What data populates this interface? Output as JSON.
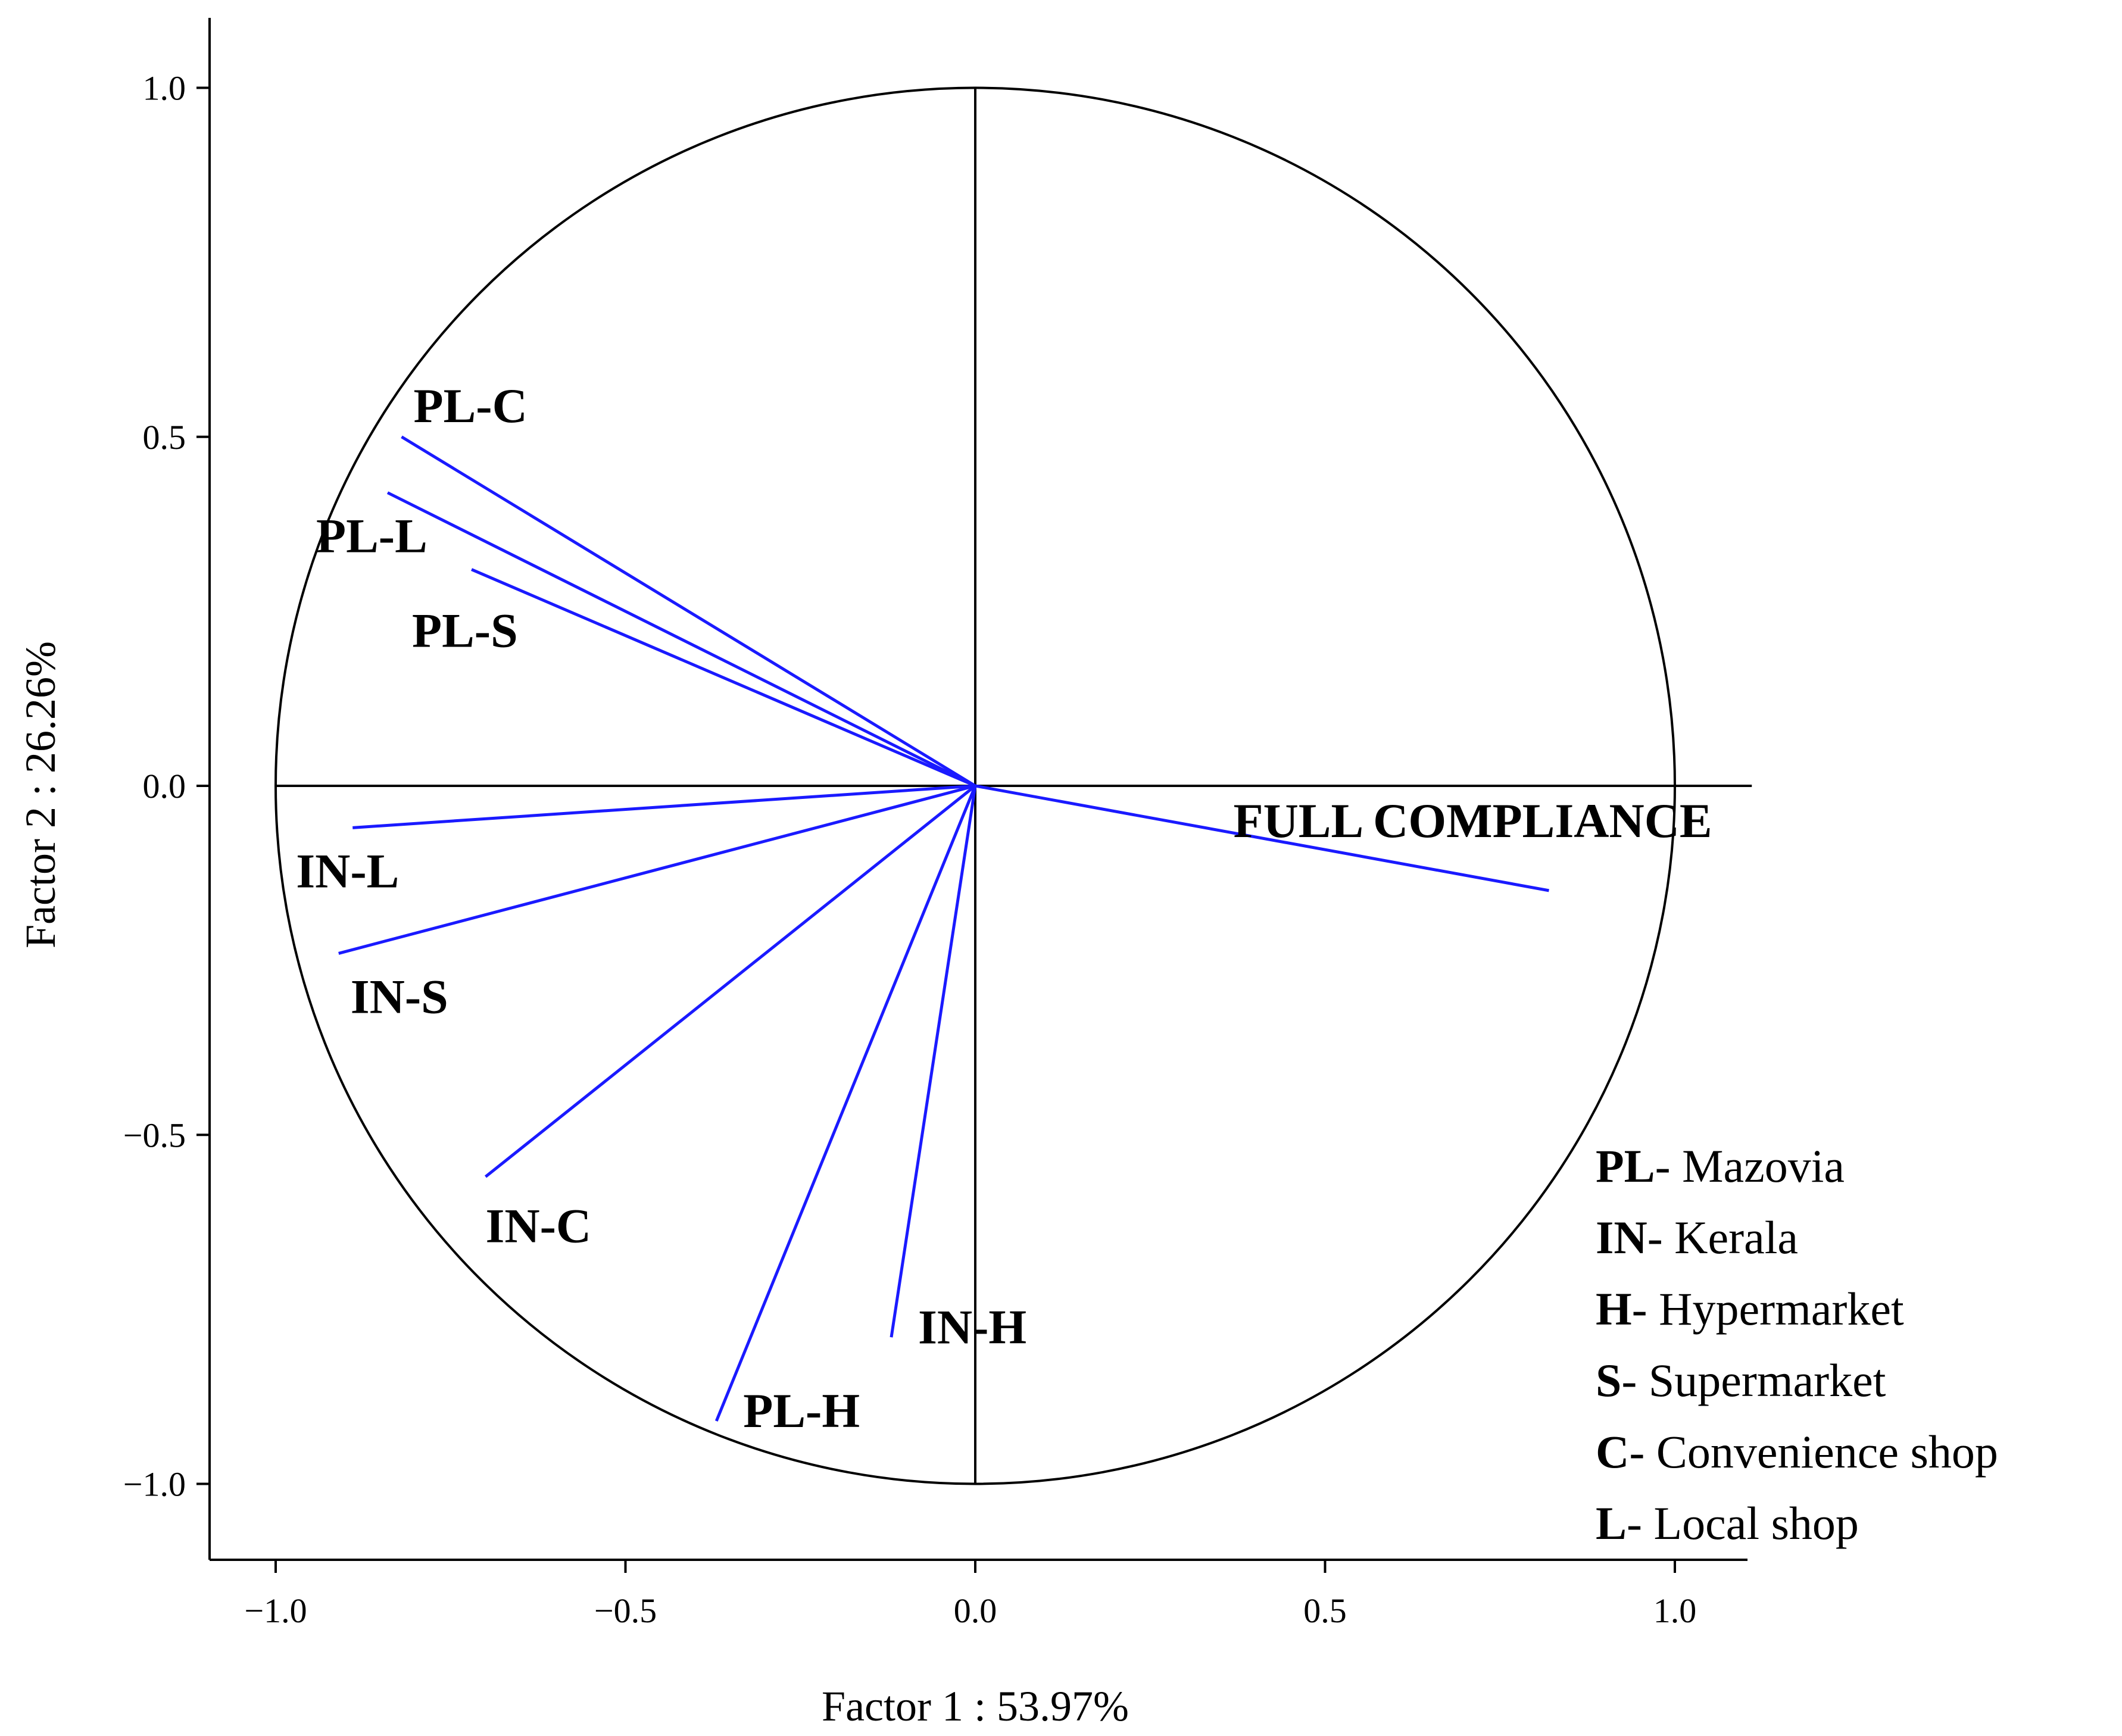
{
  "chart_data": {
    "type": "scatter",
    "subtype": "pca-correlation-circle",
    "xlabel": "Factor 1 : 53.97%",
    "ylabel": "Factor 2 : 26.26%",
    "xlim": [
      -1.1,
      1.1
    ],
    "ylim": [
      -1.1,
      1.1
    ],
    "xticks": [
      {
        "value": -1.0,
        "label": "−1.0"
      },
      {
        "value": -0.5,
        "label": "−0.5"
      },
      {
        "value": 0.0,
        "label": "0.0"
      },
      {
        "value": 0.5,
        "label": "0.5"
      },
      {
        "value": 1.0,
        "label": "1.0"
      }
    ],
    "yticks": [
      {
        "value": 1.0,
        "label": "1.0"
      },
      {
        "value": 0.5,
        "label": "0.5"
      },
      {
        "value": 0.0,
        "label": "0.0"
      },
      {
        "value": -0.5,
        "label": "−0.5"
      },
      {
        "value": -1.0,
        "label": "−1.0"
      }
    ],
    "unit_circle": true,
    "vector_color": "#1a1aff",
    "vectors": [
      {
        "name": "PL-C",
        "x": -0.82,
        "y": 0.5,
        "label_anchor": "top-right"
      },
      {
        "name": "PL-L",
        "x": -0.84,
        "y": 0.42,
        "label_anchor": "below"
      },
      {
        "name": "PL-S",
        "x": -0.72,
        "y": 0.31,
        "label_anchor": "below"
      },
      {
        "name": "IN-L",
        "x": -0.89,
        "y": -0.06,
        "label_anchor": "below"
      },
      {
        "name": "IN-S",
        "x": -0.91,
        "y": -0.24,
        "label_anchor": "below"
      },
      {
        "name": "IN-C",
        "x": -0.7,
        "y": -0.56,
        "label_anchor": "below"
      },
      {
        "name": "PL-H",
        "x": -0.37,
        "y": -0.91,
        "label_anchor": "right"
      },
      {
        "name": "IN-H",
        "x": -0.12,
        "y": -0.79,
        "label_anchor": "right"
      },
      {
        "name": "FULL COMPLIANCE",
        "x": 0.82,
        "y": -0.15,
        "label_anchor": "above-left"
      }
    ],
    "legend": {
      "position": "bottom-right",
      "entries": [
        {
          "key": "PL",
          "text": "- Mazovia"
        },
        {
          "key": "IN",
          "text": "- Kerala"
        },
        {
          "key": "H",
          "text": "- Hypermarket"
        },
        {
          "key": "S",
          "text": "- Supermarket"
        },
        {
          "key": "C",
          "text": "- Convenience shop"
        },
        {
          "key": "L",
          "text": "- Local shop"
        }
      ]
    }
  }
}
